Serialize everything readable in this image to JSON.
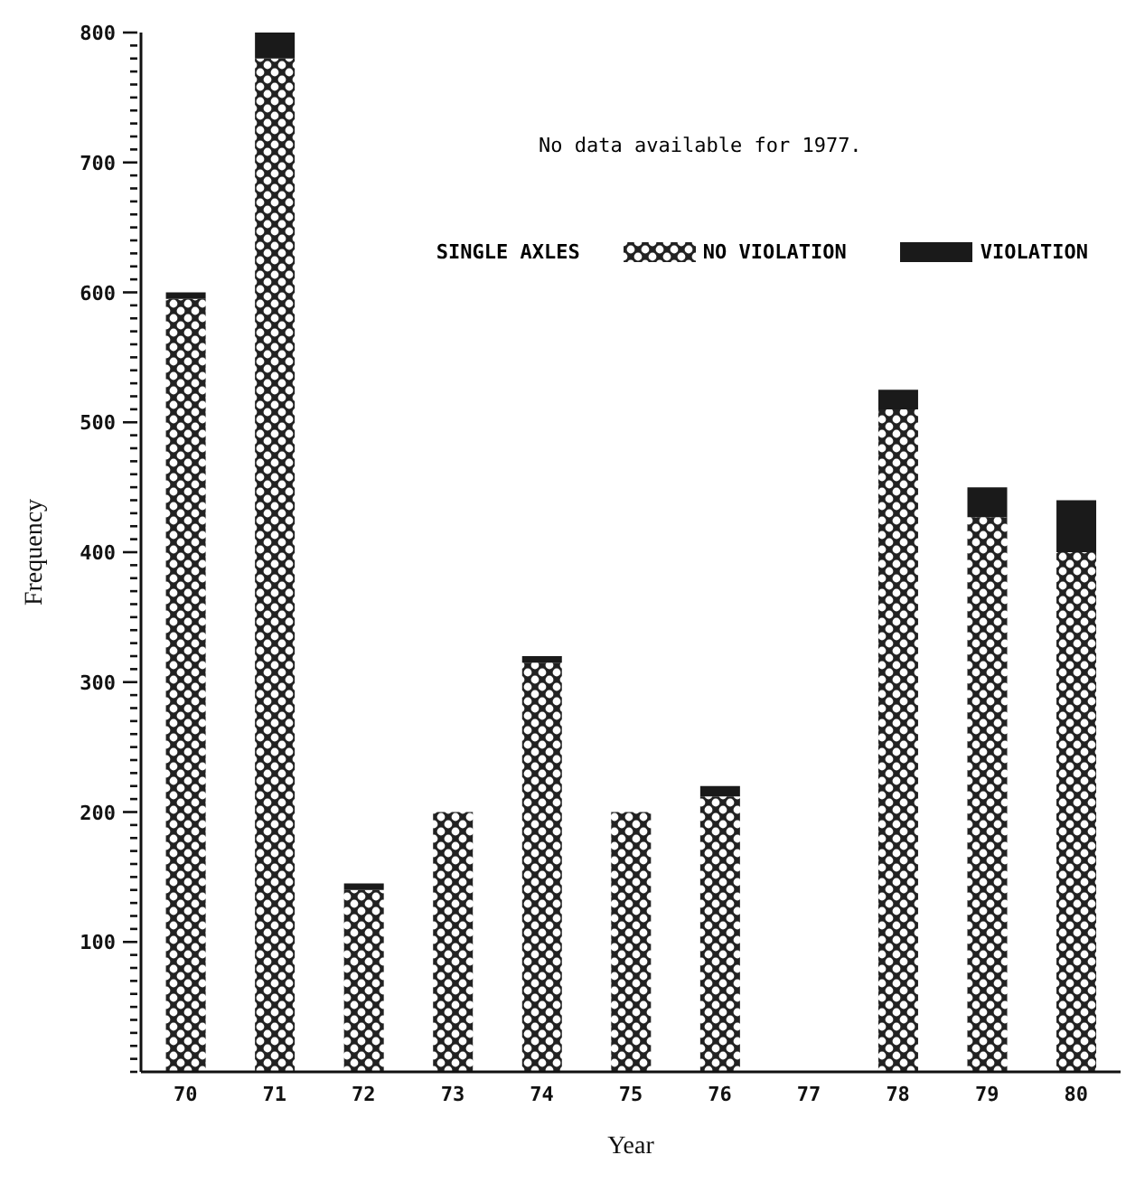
{
  "chart_data": {
    "type": "bar",
    "stacked": true,
    "xlabel": "Year",
    "ylabel": "Frequency",
    "legend_title": "SINGLE AXLES",
    "legend": "top right",
    "annotations": [
      "No data available for 1977."
    ],
    "categories": [
      "70",
      "71",
      "72",
      "73",
      "74",
      "75",
      "76",
      "77",
      "78",
      "79",
      "80"
    ],
    "series": [
      {
        "name": "NO VIOLATION",
        "color": "#222222",
        "values": [
          595,
          780,
          140,
          200,
          315,
          200,
          212,
          null,
          510,
          427,
          400
        ]
      },
      {
        "name": "VIOLATION",
        "color": "#1a1a1a",
        "values": [
          5,
          20,
          5,
          0,
          5,
          0,
          8,
          null,
          15,
          23,
          40
        ]
      }
    ],
    "ylim": [
      0,
      800
    ],
    "yticks": [
      {
        "value": 0,
        "label": null
      },
      {
        "value": 10,
        "label": null
      },
      {
        "value": 20,
        "label": null
      },
      {
        "value": 30,
        "label": null
      },
      {
        "value": 40,
        "label": null
      },
      {
        "value": 50,
        "label": null
      },
      {
        "value": 60,
        "label": null
      },
      {
        "value": 70,
        "label": null
      },
      {
        "value": 80,
        "label": null
      },
      {
        "value": 90,
        "label": null
      },
      100,
      {
        "value": 110,
        "label": null
      },
      {
        "value": 120,
        "label": null
      },
      {
        "value": 130,
        "label": null
      },
      {
        "value": 140,
        "label": null
      },
      {
        "value": 150,
        "label": null
      },
      {
        "value": 160,
        "label": null
      },
      {
        "value": 170,
        "label": null
      },
      {
        "value": 180,
        "label": null
      },
      {
        "value": 190,
        "label": null
      },
      200,
      {
        "value": 210,
        "label": null
      },
      {
        "value": 220,
        "label": null
      },
      {
        "value": 230,
        "label": null
      },
      {
        "value": 240,
        "label": null
      },
      {
        "value": 250,
        "label": null
      },
      {
        "value": 260,
        "label": null
      },
      {
        "value": 270,
        "label": null
      },
      {
        "value": 280,
        "label": null
      },
      {
        "value": 290,
        "label": null
      },
      300,
      {
        "value": 310,
        "label": null
      },
      {
        "value": 320,
        "label": null
      },
      {
        "value": 330,
        "label": null
      },
      {
        "value": 340,
        "label": null
      },
      {
        "value": 350,
        "label": null
      },
      {
        "value": 360,
        "label": null
      },
      {
        "value": 370,
        "label": null
      },
      {
        "value": 380,
        "label": null
      },
      {
        "value": 390,
        "label": null
      },
      400,
      {
        "value": 410,
        "label": null
      },
      {
        "value": 420,
        "label": null
      },
      {
        "value": 430,
        "label": null
      },
      {
        "value": 440,
        "label": null
      },
      {
        "value": 450,
        "label": null
      },
      {
        "value": 460,
        "label": null
      },
      {
        "value": 470,
        "label": null
      },
      {
        "value": 480,
        "label": null
      },
      {
        "value": 490,
        "label": null
      },
      500,
      {
        "value": 510,
        "label": null
      },
      {
        "value": 520,
        "label": null
      },
      {
        "value": 530,
        "label": null
      },
      {
        "value": 540,
        "label": null
      },
      {
        "value": 550,
        "label": null
      },
      {
        "value": 560,
        "label": null
      },
      {
        "value": 570,
        "label": null
      },
      {
        "value": 580,
        "label": null
      },
      {
        "value": 590,
        "label": null
      },
      600,
      {
        "value": 610,
        "label": null
      },
      {
        "value": 620,
        "label": null
      },
      {
        "value": 630,
        "label": null
      },
      {
        "value": 640,
        "label": null
      },
      {
        "value": 650,
        "label": null
      },
      {
        "value": 660,
        "label": null
      },
      {
        "value": 670,
        "label": null
      },
      {
        "value": 680,
        "label": null
      },
      {
        "value": 690,
        "label": null
      },
      700,
      {
        "value": 710,
        "label": null
      },
      {
        "value": 720,
        "label": null
      },
      {
        "value": 730,
        "label": null
      },
      {
        "value": 740,
        "label": null
      },
      {
        "value": 750,
        "label": null
      },
      {
        "value": 760,
        "label": null
      },
      {
        "value": 770,
        "label": null
      },
      {
        "value": 780,
        "label": null
      },
      {
        "value": 790,
        "label": null
      },
      800
    ]
  }
}
